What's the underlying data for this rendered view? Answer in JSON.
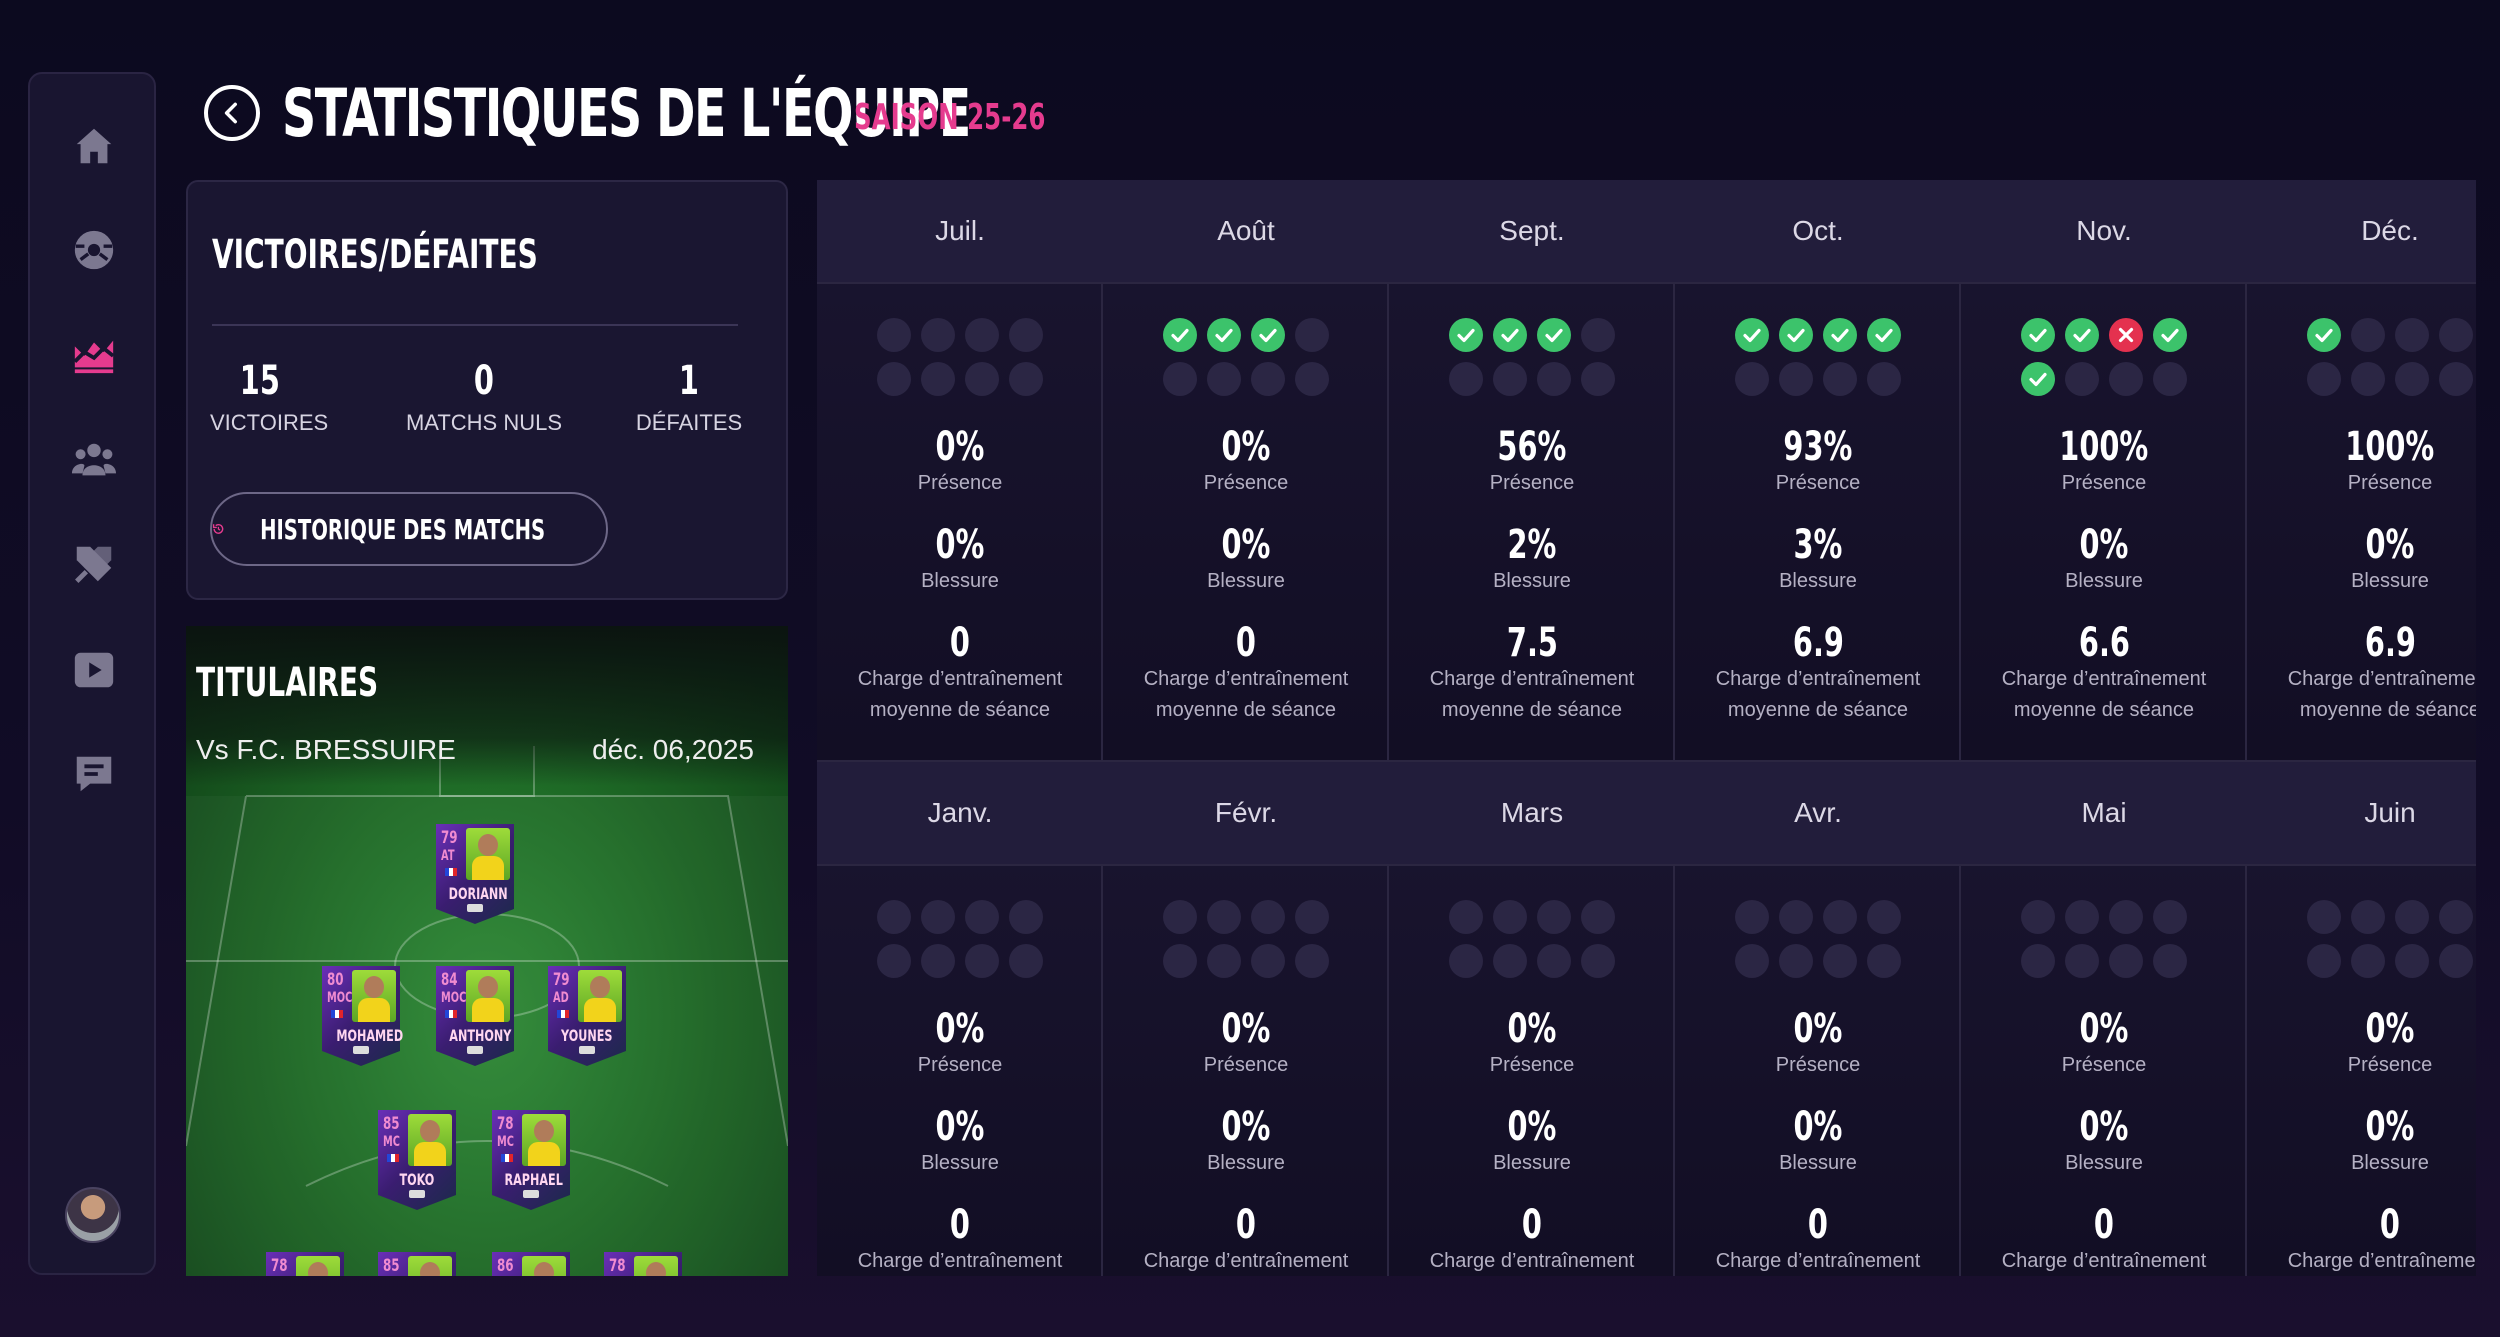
{
  "header": {
    "title": "STATISTIQUES DE L'ÉQUIPE",
    "season": "SAISON 25-26"
  },
  "sidebar": {
    "items": [
      {
        "icon": "home-icon"
      },
      {
        "icon": "football-icon"
      },
      {
        "icon": "stats-chart-icon",
        "active": true
      },
      {
        "icon": "team-icon"
      },
      {
        "icon": "training-icon"
      },
      {
        "icon": "video-play-icon"
      },
      {
        "icon": "messages-icon"
      }
    ]
  },
  "record": {
    "title": "VICTOIRES/DÉFAITES",
    "wins": "15",
    "wins_label": "VICTOIRES",
    "draws": "0",
    "draws_label": "MATCHS NULS",
    "losses": "1",
    "losses_label": "DÉFAITES",
    "history_button": "HISTORIQUE DES MATCHS"
  },
  "lineup": {
    "title": "TITULAIRES",
    "opponent": "Vs F.C. BRESSUIRE",
    "date": "déc. 06,2025",
    "players": [
      {
        "rating": "79",
        "pos": "AT",
        "name": "DORIANN"
      },
      {
        "rating": "80",
        "pos": "MOC",
        "name": "MOHAMED"
      },
      {
        "rating": "84",
        "pos": "MOC",
        "name": "ANTHONY"
      },
      {
        "rating": "79",
        "pos": "AD",
        "name": "YOUNES"
      },
      {
        "rating": "85",
        "pos": "MC",
        "name": "TOKO"
      },
      {
        "rating": "78",
        "pos": "MC",
        "name": "RAPHAEL"
      },
      {
        "rating": "78",
        "pos": "",
        "name": ""
      },
      {
        "rating": "85",
        "pos": "",
        "name": ""
      },
      {
        "rating": "86",
        "pos": "",
        "name": ""
      },
      {
        "rating": "78",
        "pos": "",
        "name": ""
      }
    ]
  },
  "labels": {
    "presence": "Présence",
    "injury": "Blessure",
    "load_line1": "Charge d’entraînement",
    "load_line2": "moyenne de séance"
  },
  "months": [
    {
      "name": "Juil.",
      "results": [],
      "presence": "0%",
      "injury": "0%",
      "load": "0"
    },
    {
      "name": "Août",
      "results": [
        "W",
        "W",
        "W"
      ],
      "presence": "0%",
      "injury": "0%",
      "load": "0"
    },
    {
      "name": "Sept.",
      "results": [
        "W",
        "W",
        "W"
      ],
      "presence": "56%",
      "injury": "2%",
      "load": "7.5"
    },
    {
      "name": "Oct.",
      "results": [
        "W",
        "W",
        "W",
        "W"
      ],
      "presence": "93%",
      "injury": "3%",
      "load": "6.9"
    },
    {
      "name": "Nov.",
      "results": [
        "W",
        "W",
        "L",
        "W",
        "W"
      ],
      "presence": "100%",
      "injury": "0%",
      "load": "6.6"
    },
    {
      "name": "Déc.",
      "results": [
        "W"
      ],
      "presence": "100%",
      "injury": "0%",
      "load": "6.9"
    },
    {
      "name": "Janv.",
      "results": [],
      "presence": "0%",
      "injury": "0%",
      "load": "0"
    },
    {
      "name": "Févr.",
      "results": [],
      "presence": "0%",
      "injury": "0%",
      "load": "0"
    },
    {
      "name": "Mars",
      "results": [],
      "presence": "0%",
      "injury": "0%",
      "load": "0"
    },
    {
      "name": "Avr.",
      "results": [],
      "presence": "0%",
      "injury": "0%",
      "load": "0"
    },
    {
      "name": "Mai",
      "results": [],
      "presence": "0%",
      "injury": "0%",
      "load": "0"
    },
    {
      "name": "Juin",
      "results": [],
      "presence": "0%",
      "injury": "0%",
      "load": "0"
    }
  ],
  "colors": {
    "accent": "#e53b8e",
    "win": "#3cc36b",
    "loss": "#e4314f",
    "background": "#0c0a1f"
  }
}
